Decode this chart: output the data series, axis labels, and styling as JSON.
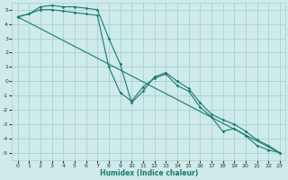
{
  "xlabel": "Humidex (Indice chaleur)",
  "bg_color": "#ceeaea",
  "grid_color": "#aad0d0",
  "line_color": "#1a7a6e",
  "xlim": [
    -0.5,
    23.5
  ],
  "ylim": [
    -5.5,
    5.5
  ],
  "yticks": [
    -5,
    -4,
    -3,
    -2,
    -1,
    0,
    1,
    2,
    3,
    4,
    5
  ],
  "xticks": [
    0,
    1,
    2,
    3,
    4,
    5,
    6,
    7,
    8,
    9,
    10,
    11,
    12,
    13,
    14,
    15,
    16,
    17,
    18,
    19,
    20,
    21,
    22,
    23
  ],
  "line1_x": [
    0,
    1,
    2,
    3,
    4,
    5,
    6,
    7,
    8,
    9,
    10,
    11,
    12,
    13,
    14,
    15,
    16,
    17,
    18,
    19,
    20,
    21,
    22,
    23
  ],
  "line1_y": [
    4.5,
    4.7,
    5.0,
    5.0,
    4.9,
    4.8,
    4.7,
    4.6,
    1.0,
    -0.8,
    -1.4,
    -0.4,
    0.2,
    0.5,
    -0.3,
    -0.7,
    -1.8,
    -2.5,
    -3.5,
    -3.3,
    -3.8,
    -4.5,
    -4.8,
    -5.0
  ],
  "line2_x": [
    0,
    1,
    2,
    3,
    4,
    5,
    6,
    7,
    8,
    9,
    10,
    11,
    12,
    13,
    14,
    15,
    16,
    17,
    18,
    19,
    20,
    21,
    22,
    23
  ],
  "line2_y": [
    4.5,
    4.7,
    5.2,
    5.3,
    5.2,
    5.2,
    5.1,
    5.0,
    3.0,
    1.2,
    -1.5,
    -0.7,
    0.3,
    0.6,
    0.0,
    -0.5,
    -1.5,
    -2.3,
    -2.7,
    -3.0,
    -3.5,
    -4.1,
    -4.5,
    -5.0
  ],
  "line3_x": [
    0,
    23
  ],
  "line3_y": [
    4.5,
    -5.0
  ],
  "tick_fontsize": 4.5,
  "xlabel_fontsize": 5.5
}
